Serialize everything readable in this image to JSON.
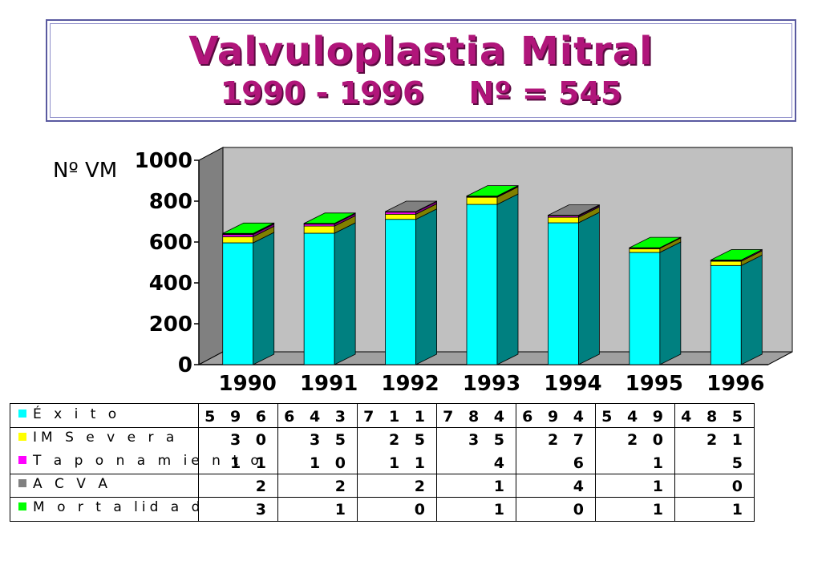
{
  "title": {
    "line1": "Valvuloplastia Mitral",
    "line2_years": "1990 - 1996",
    "line2_count": "Nº = 545"
  },
  "chart_data": {
    "type": "bar",
    "stacked": true,
    "three_d": true,
    "ylabel": "Nº VM",
    "ylim": [
      0,
      1000
    ],
    "yticks": [
      0,
      200,
      400,
      600,
      800,
      1000
    ],
    "categories": [
      "1990",
      "1991",
      "1992",
      "1993",
      "1994",
      "1995",
      "1996"
    ],
    "series": [
      {
        "name": "É x i t o",
        "color": "#00ffff",
        "side_color": "#008080",
        "values": [
          596,
          643,
          711,
          784,
          694,
          549,
          485
        ]
      },
      {
        "name": "IM  S e v e r a",
        "color": "#ffff00",
        "side_color": "#808000",
        "values": [
          30,
          35,
          25,
          35,
          27,
          20,
          21
        ]
      },
      {
        "name": "T a p o n a m ie n t o",
        "color": "#ff00ff",
        "side_color": "#800080",
        "values": [
          11,
          10,
          11,
          4,
          6,
          1,
          5
        ]
      },
      {
        "name": "A C V A",
        "color": "#808080",
        "side_color": "#404040",
        "values": [
          2,
          2,
          2,
          1,
          4,
          1,
          0
        ]
      },
      {
        "name": "M o r t a lid a d",
        "color": "#00ff00",
        "side_color": "#008000",
        "values": [
          3,
          1,
          0,
          1,
          0,
          1,
          1
        ]
      }
    ],
    "table_values": [
      [
        "5 9 6",
        "6 4 3",
        "7 1 1",
        "7 8 4",
        "6 9 4",
        "5 4 9",
        "4 8 5"
      ],
      [
        "3 0",
        "3 5",
        "2 5",
        "3 5",
        "2 7",
        "2 0",
        "2 1"
      ],
      [
        "1 1",
        "1 0",
        "1 1",
        "4",
        "6",
        "1",
        "5"
      ],
      [
        "2",
        "2",
        "2",
        "1",
        "4",
        "1",
        "0"
      ],
      [
        "3",
        "1",
        "0",
        "1",
        "0",
        "1",
        "1"
      ]
    ],
    "colors": {
      "wall": "#c0c0c0",
      "wall_edge": "#808080",
      "floor": "#a0a0a0"
    }
  }
}
